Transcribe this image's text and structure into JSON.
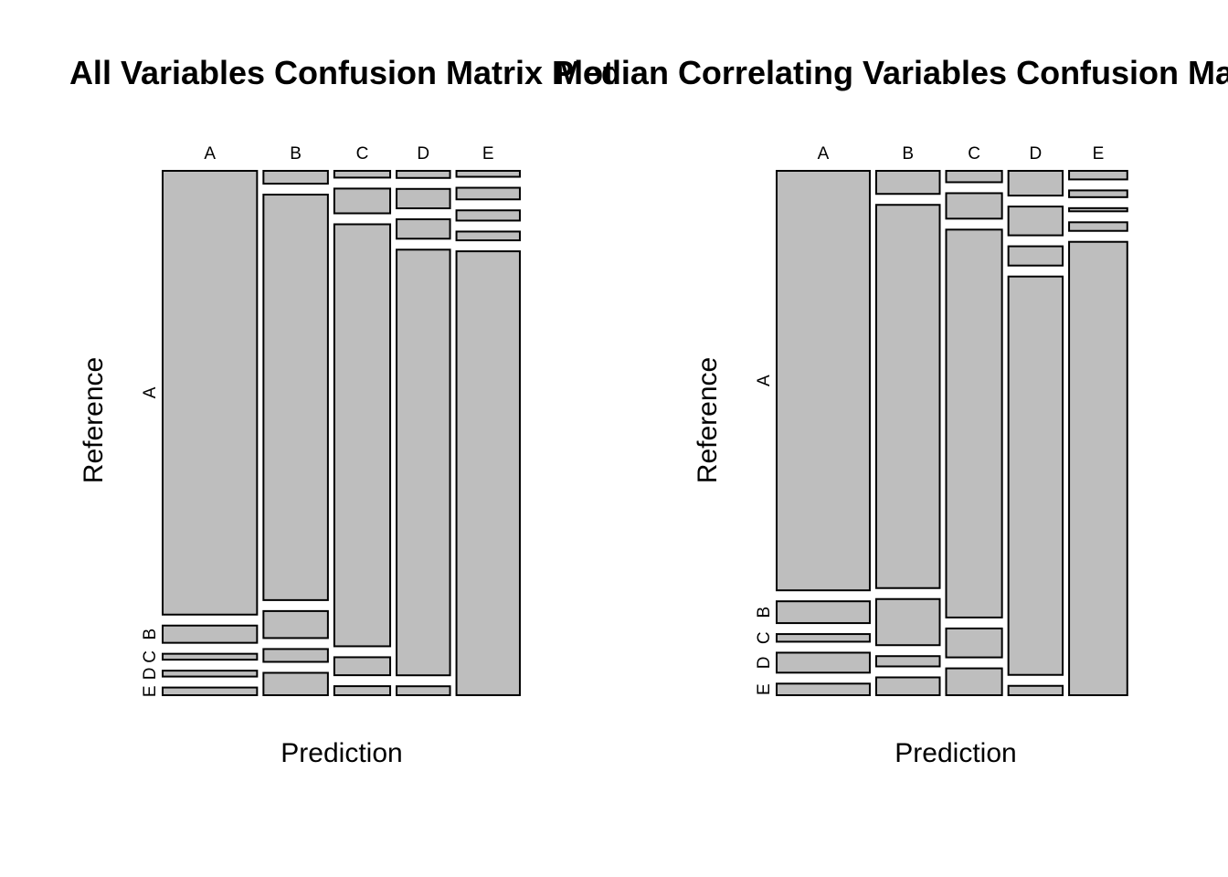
{
  "chart_data": [
    {
      "type": "mosaic",
      "title": "All Variables Confusion Matrix Plot",
      "xlabel": "Prediction",
      "ylabel": "Reference",
      "x_categories": [
        "A",
        "B",
        "C",
        "D",
        "E"
      ],
      "y_categories": [
        "A",
        "B",
        "C",
        "D",
        "E"
      ],
      "y_tick_labels": [
        "A",
        "B",
        "C",
        "D",
        "E"
      ],
      "column_proportions": [
        0.2847,
        0.1943,
        0.1685,
        0.1612,
        0.1912
      ],
      "reference_within_prediction": [
        [
          0.9235,
          0.0359,
          0.0123,
          0.0123,
          0.016
        ],
        [
          0.0267,
          0.8438,
          0.0562,
          0.0267,
          0.0466
        ],
        [
          0.0141,
          0.0515,
          0.8782,
          0.0374,
          0.0188
        ],
        [
          0.0148,
          0.0404,
          0.0404,
          0.8858,
          0.0186
        ],
        [
          0.0124,
          0.0242,
          0.0213,
          0.0183,
          0.9237
        ]
      ]
    },
    {
      "type": "mosaic",
      "title": "Median Correlating Variables Confusion Matrix Plot",
      "xlabel": "Prediction",
      "ylabel": "Reference",
      "x_categories": [
        "A",
        "B",
        "C",
        "D",
        "E"
      ],
      "y_categories": [
        "A",
        "B",
        "C",
        "D",
        "E"
      ],
      "y_tick_labels": [
        "A",
        "B",
        "C",
        "D",
        "E"
      ],
      "column_proportions": [
        0.2809,
        0.1916,
        0.1684,
        0.1637,
        0.1755
      ],
      "reference_within_prediction": [
        [
          0.873,
          0.0454,
          0.0159,
          0.0416,
          0.0241
        ],
        [
          0.048,
          0.7975,
          0.096,
          0.0214,
          0.0371
        ],
        [
          0.0237,
          0.053,
          0.8072,
          0.0602,
          0.0559
        ],
        [
          0.0515,
          0.0599,
          0.0401,
          0.829,
          0.0195
        ],
        [
          0.0179,
          0.0141,
          0.0066,
          0.0179,
          0.9435
        ]
      ]
    }
  ]
}
